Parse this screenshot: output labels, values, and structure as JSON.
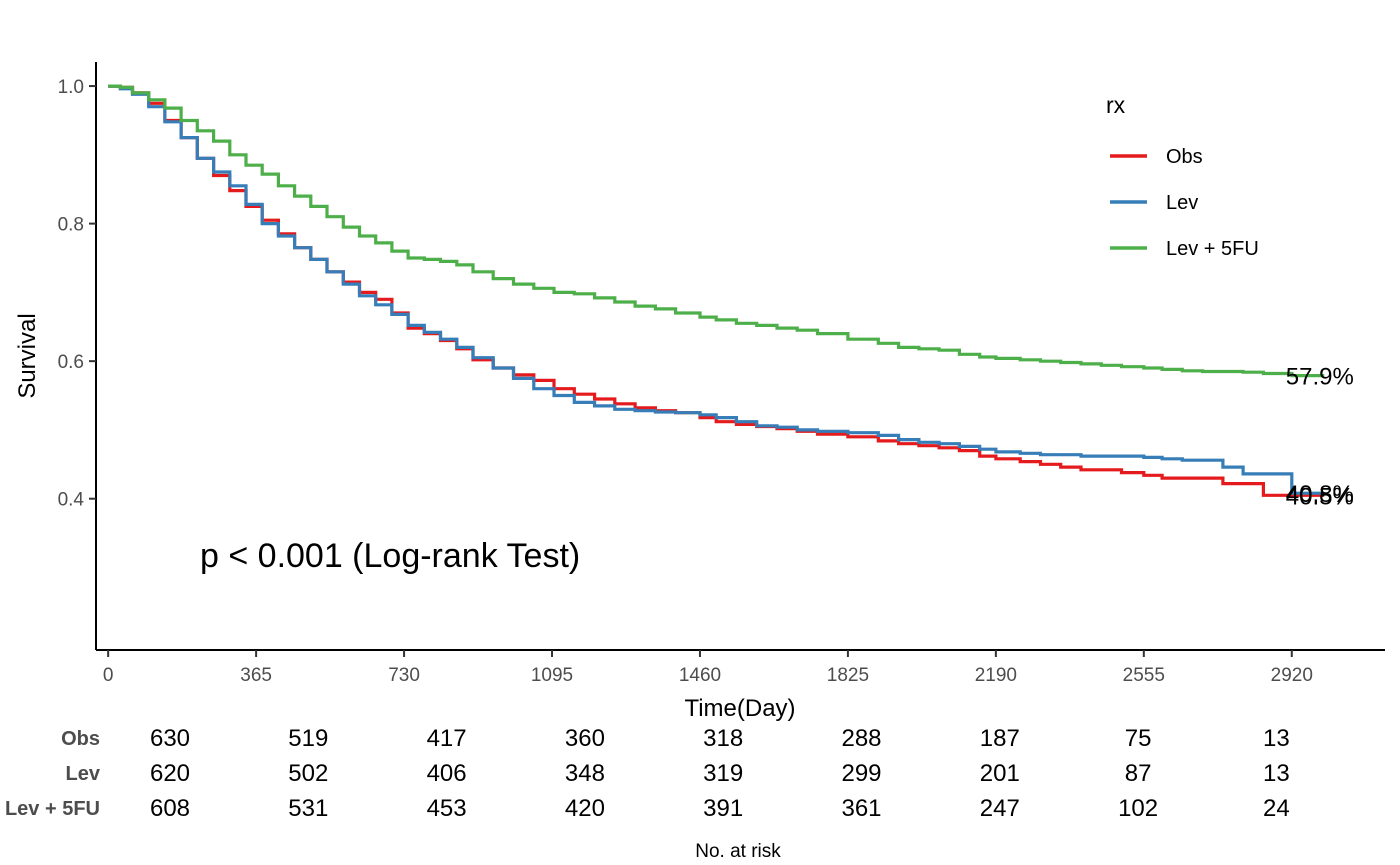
{
  "chart_data": {
    "type": "line",
    "step": true,
    "xlabel": "Time(Day)",
    "ylabel": "Survival",
    "xlim": [
      -30,
      3150
    ],
    "ylim": [
      0.18,
      1.035
    ],
    "x_ticks": [
      0,
      365,
      730,
      1095,
      1460,
      1825,
      2190,
      2555,
      2920
    ],
    "x_tick_labels": [
      "0",
      "365",
      "730",
      "1095",
      "1460",
      "1825",
      "2190",
      "2555",
      "2920"
    ],
    "y_ticks": [
      0.4,
      0.6,
      0.8,
      1.0
    ],
    "y_tick_labels": [
      "0.4",
      "0.6",
      "0.8",
      "1.0"
    ],
    "legend": {
      "title": "rx",
      "position": "top-right"
    },
    "annotation": "p < 0.001 (Log-rank Test)",
    "series": [
      {
        "name": "Obs",
        "color": "#e41a1c",
        "end_label": "40.5%",
        "x": [
          0,
          30,
          60,
          100,
          140,
          180,
          220,
          260,
          300,
          340,
          380,
          420,
          460,
          500,
          540,
          580,
          620,
          660,
          700,
          740,
          780,
          820,
          860,
          900,
          950,
          1000,
          1050,
          1100,
          1150,
          1200,
          1250,
          1300,
          1350,
          1400,
          1460,
          1500,
          1550,
          1600,
          1650,
          1700,
          1750,
          1825,
          1900,
          1950,
          2000,
          2050,
          2100,
          2150,
          2190,
          2250,
          2300,
          2350,
          2400,
          2450,
          2500,
          2555,
          2600,
          2650,
          2700,
          2750,
          2800,
          2850,
          2920,
          3000
        ],
        "y": [
          1.0,
          0.998,
          0.99,
          0.975,
          0.95,
          0.925,
          0.895,
          0.87,
          0.848,
          0.825,
          0.805,
          0.785,
          0.765,
          0.748,
          0.73,
          0.715,
          0.7,
          0.69,
          0.67,
          0.648,
          0.64,
          0.63,
          0.618,
          0.602,
          0.59,
          0.58,
          0.572,
          0.56,
          0.552,
          0.545,
          0.538,
          0.532,
          0.528,
          0.525,
          0.518,
          0.512,
          0.508,
          0.505,
          0.502,
          0.498,
          0.494,
          0.49,
          0.484,
          0.48,
          0.477,
          0.474,
          0.47,
          0.462,
          0.458,
          0.454,
          0.45,
          0.446,
          0.442,
          0.442,
          0.438,
          0.434,
          0.43,
          0.43,
          0.43,
          0.422,
          0.422,
          0.405,
          0.405,
          0.405
        ]
      },
      {
        "name": "Lev",
        "color": "#377eb8",
        "end_label": "40.8%",
        "x": [
          0,
          30,
          60,
          100,
          140,
          180,
          220,
          260,
          300,
          340,
          380,
          420,
          460,
          500,
          540,
          580,
          620,
          660,
          700,
          740,
          780,
          820,
          860,
          900,
          950,
          1000,
          1050,
          1100,
          1150,
          1200,
          1250,
          1300,
          1350,
          1400,
          1460,
          1500,
          1550,
          1600,
          1650,
          1700,
          1750,
          1825,
          1900,
          1950,
          2000,
          2050,
          2100,
          2150,
          2190,
          2250,
          2300,
          2350,
          2400,
          2450,
          2500,
          2555,
          2600,
          2650,
          2700,
          2750,
          2800,
          2850,
          2920,
          3000
        ],
        "y": [
          1.0,
          0.996,
          0.988,
          0.97,
          0.948,
          0.925,
          0.895,
          0.875,
          0.855,
          0.828,
          0.8,
          0.782,
          0.765,
          0.748,
          0.73,
          0.712,
          0.695,
          0.682,
          0.668,
          0.652,
          0.642,
          0.632,
          0.62,
          0.605,
          0.59,
          0.575,
          0.56,
          0.55,
          0.54,
          0.535,
          0.53,
          0.528,
          0.526,
          0.525,
          0.522,
          0.518,
          0.512,
          0.506,
          0.504,
          0.5,
          0.498,
          0.496,
          0.492,
          0.486,
          0.482,
          0.48,
          0.476,
          0.472,
          0.468,
          0.466,
          0.464,
          0.464,
          0.462,
          0.462,
          0.462,
          0.46,
          0.458,
          0.456,
          0.456,
          0.446,
          0.436,
          0.436,
          0.408,
          0.408
        ]
      },
      {
        "name": "Lev + 5FU",
        "color": "#4daf4a",
        "end_label": "57.9%",
        "x": [
          0,
          30,
          60,
          100,
          140,
          180,
          220,
          260,
          300,
          340,
          380,
          420,
          460,
          500,
          540,
          580,
          620,
          660,
          700,
          740,
          780,
          820,
          860,
          900,
          950,
          1000,
          1050,
          1100,
          1150,
          1200,
          1250,
          1300,
          1350,
          1400,
          1460,
          1500,
          1550,
          1600,
          1650,
          1700,
          1750,
          1825,
          1900,
          1950,
          2000,
          2050,
          2100,
          2150,
          2190,
          2250,
          2300,
          2350,
          2400,
          2450,
          2500,
          2555,
          2600,
          2650,
          2700,
          2750,
          2800,
          2850,
          2920,
          3000
        ],
        "y": [
          1.0,
          0.998,
          0.99,
          0.98,
          0.968,
          0.95,
          0.935,
          0.92,
          0.9,
          0.885,
          0.872,
          0.855,
          0.84,
          0.825,
          0.81,
          0.795,
          0.782,
          0.772,
          0.76,
          0.75,
          0.748,
          0.745,
          0.74,
          0.73,
          0.72,
          0.712,
          0.706,
          0.7,
          0.698,
          0.692,
          0.686,
          0.68,
          0.676,
          0.67,
          0.664,
          0.66,
          0.655,
          0.652,
          0.648,
          0.645,
          0.64,
          0.632,
          0.626,
          0.62,
          0.618,
          0.616,
          0.61,
          0.606,
          0.604,
          0.602,
          0.6,
          0.598,
          0.596,
          0.594,
          0.592,
          0.59,
          0.588,
          0.586,
          0.585,
          0.585,
          0.584,
          0.582,
          0.579,
          0.579
        ]
      }
    ],
    "risk_table": {
      "caption": "No. at risk",
      "times": [
        0,
        365,
        730,
        1095,
        1460,
        1825,
        2190,
        2555,
        2920
      ],
      "rows": [
        {
          "name": "Obs",
          "values": [
            "630",
            "519",
            "417",
            "360",
            "318",
            "288",
            "187",
            "75",
            "13"
          ]
        },
        {
          "name": "Lev",
          "values": [
            "620",
            "502",
            "406",
            "348",
            "319",
            "299",
            "201",
            "87",
            "13"
          ]
        },
        {
          "name": "Lev + 5FU",
          "values": [
            "608",
            "531",
            "453",
            "420",
            "391",
            "361",
            "247",
            "102",
            "24"
          ]
        }
      ]
    }
  }
}
